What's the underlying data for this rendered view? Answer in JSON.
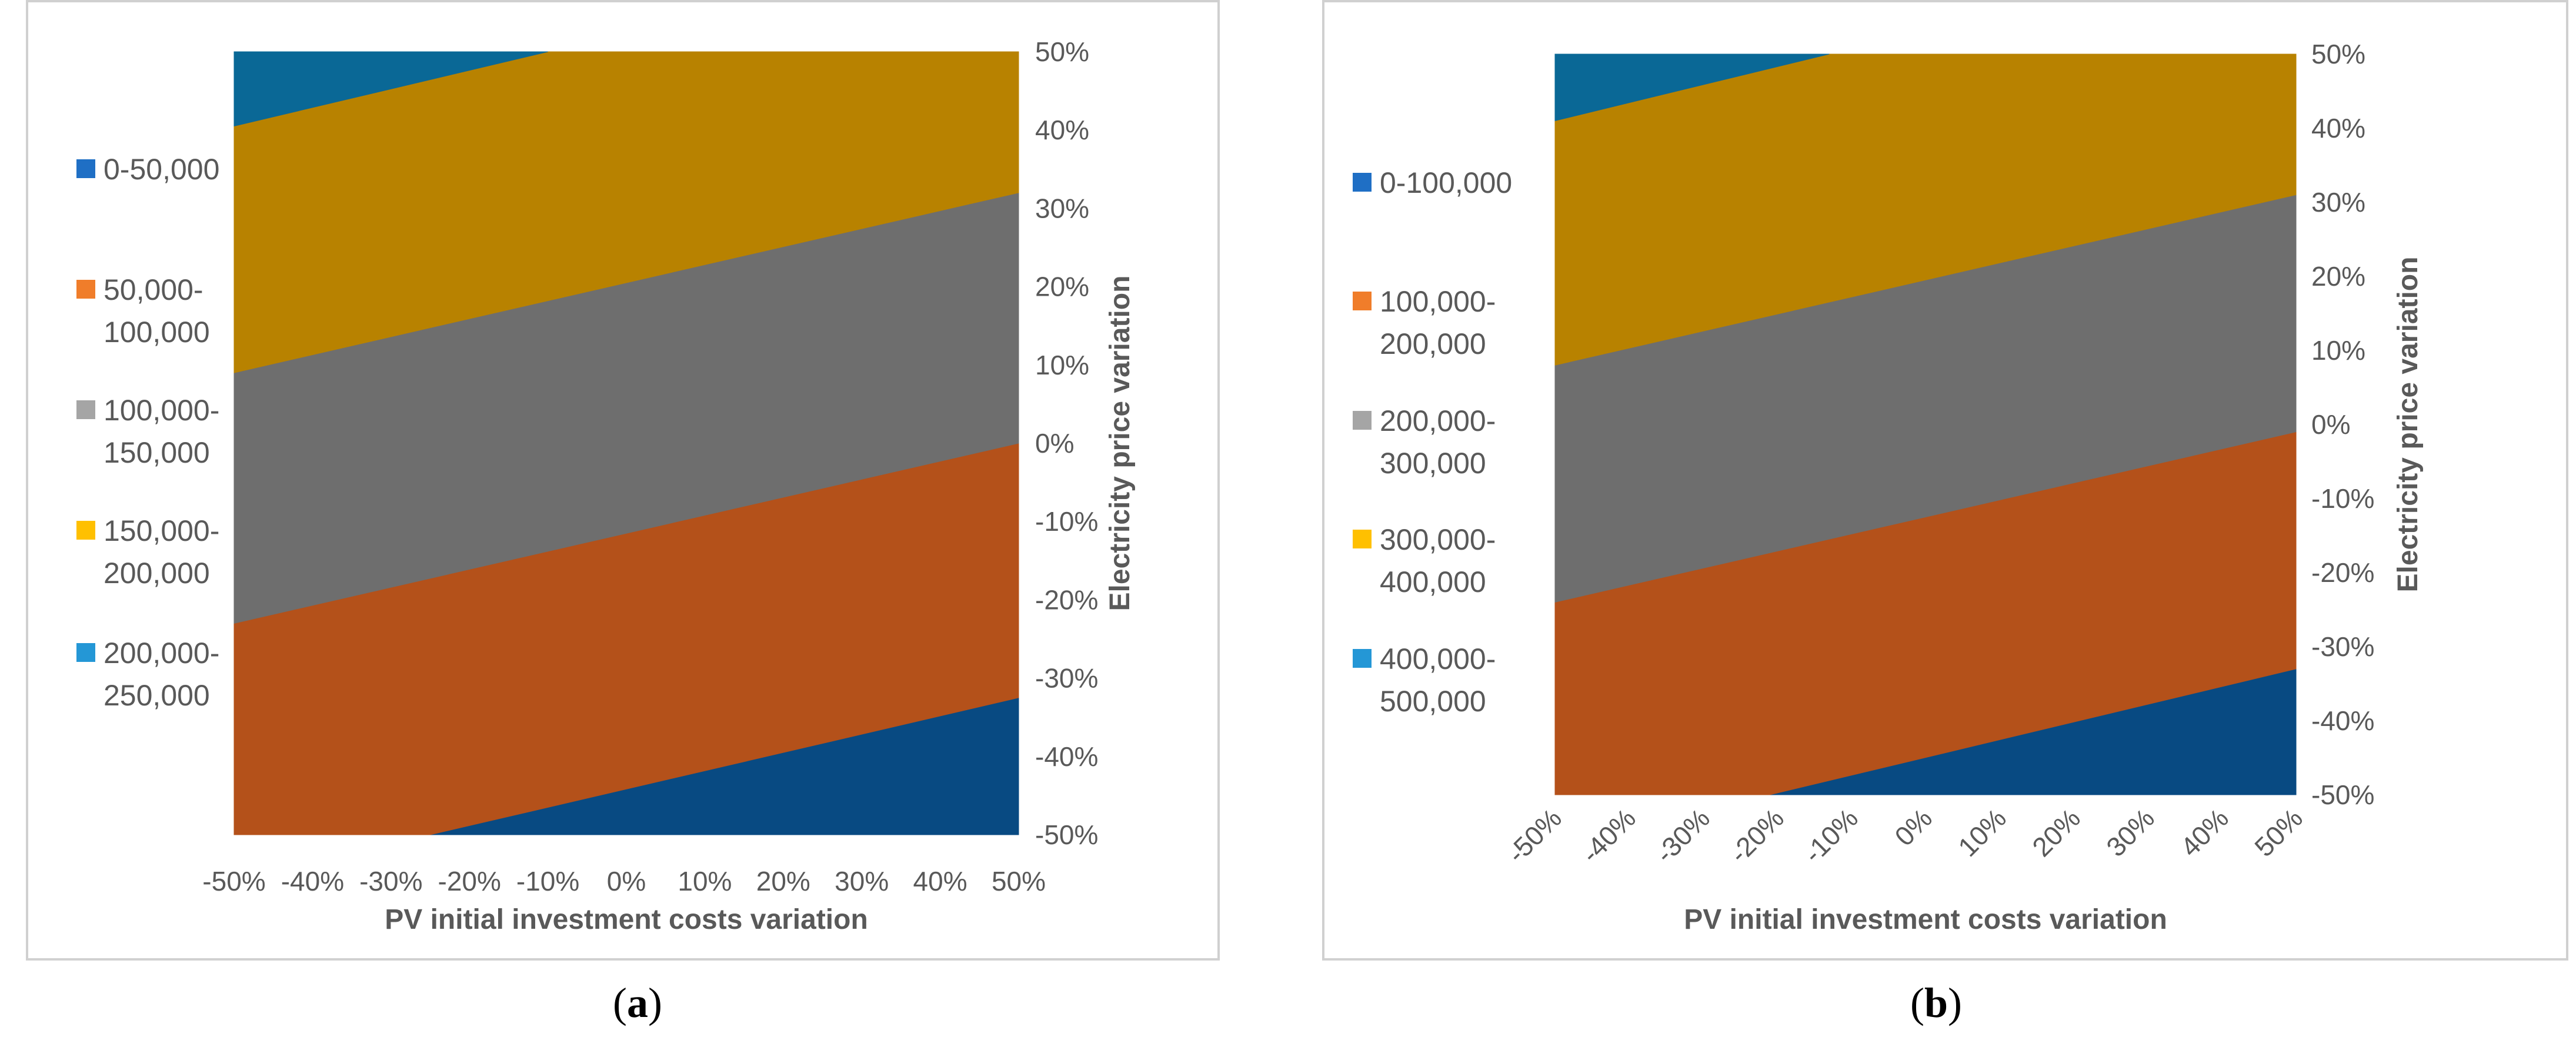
{
  "chart_data": [
    {
      "type": "contour",
      "panel_label": "a",
      "xlabel": "PV initial investment costs variation",
      "ylabel": "Electricity price variation",
      "x_ticks": [
        "-50%",
        "-40%",
        "-30%",
        "-20%",
        "-10%",
        "0%",
        "10%",
        "20%",
        "30%",
        "40%",
        "50%"
      ],
      "y_ticks": [
        "50%",
        "40%",
        "30%",
        "20%",
        "10%",
        "0%",
        "-10%",
        "-20%",
        "-30%",
        "-40%",
        "-50%"
      ],
      "x_range": [
        -50,
        50
      ],
      "y_range": [
        -50,
        50
      ],
      "x_tick_rotation": 0,
      "legend": [
        {
          "label": "0-50,000",
          "color": "#1f6fc5"
        },
        {
          "label": "50,000-\n100,000",
          "color": "#f07d2a"
        },
        {
          "label": "100,000-\n150,000",
          "color": "#a5a5a5"
        },
        {
          "label": "150,000-\n200,000",
          "color": "#ffc000"
        },
        {
          "label": "200,000-\n250,000",
          "color": "#2497d6"
        }
      ],
      "bands": [
        {
          "label": "0-50,000",
          "color": "#084a82",
          "lower_boundary": null,
          "upper_boundary": [
            [
              -25,
              -50
            ],
            [
              50,
              -32.5
            ]
          ]
        },
        {
          "label": "50,000-100,000",
          "color": "#b4511a",
          "lower_boundary": [
            [
              -25,
              -50
            ],
            [
              50,
              -32.5
            ]
          ],
          "upper_boundary": [
            [
              -50,
              -23
            ],
            [
              50,
              0
            ]
          ]
        },
        {
          "label": "100,000-150,000",
          "color": "#6e6e6e",
          "lower_boundary": [
            [
              -50,
              -23
            ],
            [
              50,
              0
            ]
          ],
          "upper_boundary": [
            [
              -50,
              9
            ],
            [
              50,
              32
            ]
          ]
        },
        {
          "label": "150,000-200,000",
          "color": "#b88200",
          "lower_boundary": [
            [
              -50,
              9
            ],
            [
              50,
              32
            ]
          ],
          "upper_boundary": [
            [
              -50,
              40.5
            ],
            [
              -10,
              50
            ]
          ]
        },
        {
          "label": "200,000-250,000",
          "color": "#0a6896",
          "lower_boundary": [
            [
              -50,
              40.5
            ],
            [
              -10,
              50
            ]
          ],
          "upper_boundary": null
        }
      ]
    },
    {
      "type": "contour",
      "panel_label": "b",
      "xlabel": "PV initial investment costs variation",
      "ylabel": "Electricity price variation",
      "x_ticks": [
        "-50%",
        "-40%",
        "-30%",
        "-20%",
        "-10%",
        "0%",
        "10%",
        "20%",
        "30%",
        "40%",
        "50%"
      ],
      "y_ticks": [
        "50%",
        "40%",
        "30%",
        "20%",
        "10%",
        "0%",
        "-10%",
        "-20%",
        "-30%",
        "-40%",
        "-50%"
      ],
      "x_range": [
        -50,
        50
      ],
      "y_range": [
        -50,
        50
      ],
      "x_tick_rotation": -45,
      "legend": [
        {
          "label": "0-100,000",
          "color": "#1f6fc5"
        },
        {
          "label": "100,000-\n200,000",
          "color": "#f07d2a"
        },
        {
          "label": "200,000-\n300,000",
          "color": "#a5a5a5"
        },
        {
          "label": "300,000-\n400,000",
          "color": "#ffc000"
        },
        {
          "label": "400,000-\n500,000",
          "color": "#2497d6"
        }
      ],
      "bands": [
        {
          "label": "0-100,000",
          "color": "#084a82",
          "lower_boundary": null,
          "upper_boundary": [
            [
              -21,
              -50
            ],
            [
              50,
              -33
            ]
          ]
        },
        {
          "label": "100,000-200,000",
          "color": "#b4511a",
          "lower_boundary": [
            [
              -21,
              -50
            ],
            [
              50,
              -33
            ]
          ],
          "upper_boundary": [
            [
              -50,
              -24
            ],
            [
              50,
              -1
            ]
          ]
        },
        {
          "label": "200,000-300,000",
          "color": "#6e6e6e",
          "lower_boundary": [
            [
              -50,
              -24
            ],
            [
              50,
              -1
            ]
          ],
          "upper_boundary": [
            [
              -50,
              8
            ],
            [
              50,
              31
            ]
          ]
        },
        {
          "label": "300,000-400,000",
          "color": "#b88200",
          "lower_boundary": [
            [
              -50,
              8
            ],
            [
              50,
              31
            ]
          ],
          "upper_boundary": [
            [
              -50,
              41
            ],
            [
              -13,
              50
            ]
          ]
        },
        {
          "label": "400,000-500,000",
          "color": "#0a6896",
          "lower_boundary": [
            [
              -50,
              41
            ],
            [
              -13,
              50
            ]
          ],
          "upper_boundary": null
        }
      ]
    }
  ]
}
